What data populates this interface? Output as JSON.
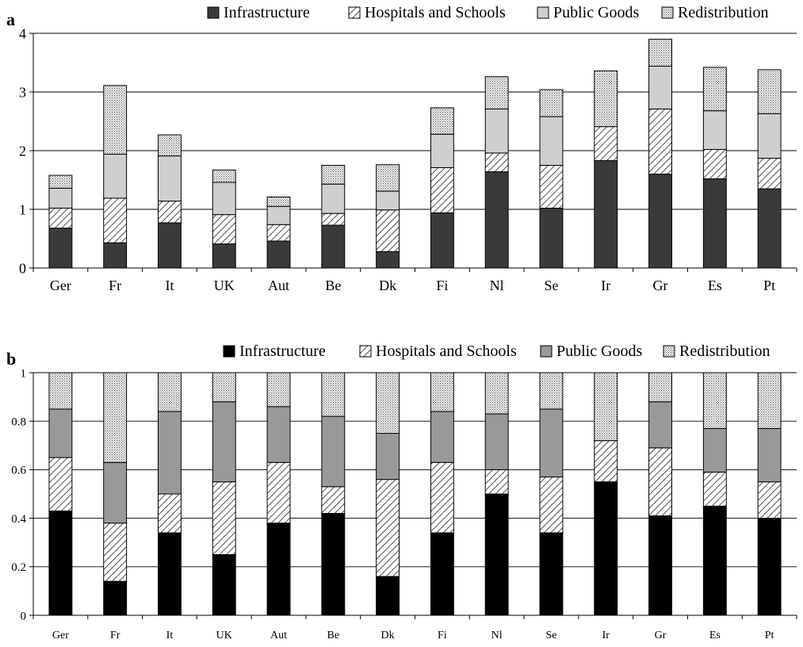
{
  "chart_data": [
    {
      "panel_label": "a",
      "type": "bar",
      "stacked": true,
      "categories": [
        "Ger",
        "Fr",
        "It",
        "UK",
        "Aut",
        "Be",
        "Dk",
        "Fi",
        "Nl",
        "Se",
        "Ir",
        "Gr",
        "Es",
        "Pt"
      ],
      "series": [
        {
          "name": "Infrastructure",
          "color": "#3a3a3a",
          "pattern": "solid",
          "values": [
            0.68,
            0.43,
            0.77,
            0.41,
            0.46,
            0.73,
            0.28,
            0.94,
            1.64,
            1.02,
            1.83,
            1.6,
            1.52,
            1.35
          ]
        },
        {
          "name": "Hospitals and Schools",
          "color": "#ffffff",
          "pattern": "hatch",
          "values": [
            0.34,
            0.76,
            0.37,
            0.5,
            0.28,
            0.2,
            0.71,
            0.77,
            0.32,
            0.73,
            0.58,
            1.11,
            0.5,
            0.52
          ]
        },
        {
          "name": "Public Goods",
          "color": "#cfcfcf",
          "pattern": "solid",
          "values": [
            0.34,
            0.75,
            0.77,
            0.55,
            0.31,
            0.5,
            0.32,
            0.57,
            0.75,
            0.83,
            0.0,
            0.73,
            0.66,
            0.76
          ]
        },
        {
          "name": "Redistribution",
          "color": "#e6e6e6",
          "pattern": "dots",
          "values": [
            0.22,
            1.17,
            0.36,
            0.21,
            0.16,
            0.32,
            0.45,
            0.45,
            0.55,
            0.46,
            0.95,
            0.46,
            0.74,
            0.75
          ]
        }
      ],
      "yticks": [
        "0",
        "1",
        "2",
        "3",
        "4"
      ],
      "ylim": [
        0,
        4
      ],
      "grid": true,
      "legend_position": "top"
    },
    {
      "panel_label": "b",
      "type": "bar",
      "stacked": true,
      "categories": [
        "Ger",
        "Fr",
        "It",
        "UK",
        "Aut",
        "Be",
        "Dk",
        "Fi",
        "Nl",
        "Se",
        "Ir",
        "Gr",
        "Es",
        "Pt"
      ],
      "series": [
        {
          "name": "Infrastructure",
          "color": "#000000",
          "pattern": "solid",
          "values": [
            0.43,
            0.14,
            0.34,
            0.25,
            0.38,
            0.42,
            0.16,
            0.34,
            0.5,
            0.34,
            0.55,
            0.41,
            0.45,
            0.4
          ]
        },
        {
          "name": "Hospitals and Schools",
          "color": "#ffffff",
          "pattern": "hatch",
          "values": [
            0.22,
            0.24,
            0.16,
            0.3,
            0.25,
            0.11,
            0.4,
            0.29,
            0.1,
            0.23,
            0.17,
            0.28,
            0.14,
            0.15
          ]
        },
        {
          "name": "Public Goods",
          "color": "#999999",
          "pattern": "solid",
          "values": [
            0.2,
            0.25,
            0.34,
            0.33,
            0.23,
            0.29,
            0.19,
            0.21,
            0.23,
            0.28,
            0.0,
            0.19,
            0.18,
            0.22
          ]
        },
        {
          "name": "Redistribution",
          "color": "#e6e6e6",
          "pattern": "dots",
          "values": [
            0.15,
            0.37,
            0.16,
            0.12,
            0.14,
            0.18,
            0.25,
            0.16,
            0.17,
            0.15,
            0.28,
            0.12,
            0.23,
            0.23
          ]
        }
      ],
      "yticks": [
        "0",
        "0.2",
        "0.4",
        "0.6",
        "0.8",
        "1"
      ],
      "ylim": [
        0,
        1
      ],
      "grid": true,
      "legend_position": "top"
    }
  ]
}
